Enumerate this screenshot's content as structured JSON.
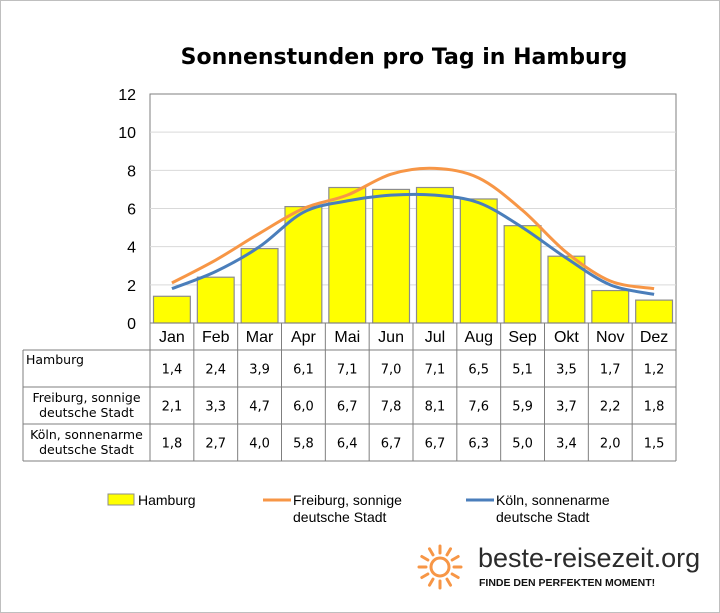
{
  "chart_data": {
    "type": "bar",
    "title": "Sonnenstunden pro Tag in Hamburg",
    "categories": [
      "Jan",
      "Feb",
      "Mar",
      "Apr",
      "Mai",
      "Jun",
      "Jul",
      "Aug",
      "Sep",
      "Okt",
      "Nov",
      "Dez"
    ],
    "ylim": [
      0,
      12
    ],
    "yticks": [
      0,
      2,
      4,
      6,
      8,
      10,
      12
    ],
    "grid": true,
    "legend_position": "bottom",
    "series": [
      {
        "name": "Hamburg",
        "type": "bar",
        "color": "#ffff00",
        "values": [
          1.4,
          2.4,
          3.9,
          6.1,
          7.1,
          7.0,
          7.1,
          6.5,
          5.1,
          3.5,
          1.7,
          1.2
        ],
        "labels": [
          "1,4",
          "2,4",
          "3,9",
          "6,1",
          "7,1",
          "7,0",
          "7,1",
          "6,5",
          "5,1",
          "3,5",
          "1,7",
          "1,2"
        ]
      },
      {
        "name": "Freiburg, sonnige deutsche Stadt",
        "type": "line",
        "color": "#f79646",
        "values": [
          2.1,
          3.3,
          4.7,
          6.0,
          6.7,
          7.8,
          8.1,
          7.6,
          5.9,
          3.7,
          2.2,
          1.8
        ],
        "labels": [
          "2,1",
          "3,3",
          "4,7",
          "6,0",
          "6,7",
          "7,8",
          "8,1",
          "7,6",
          "5,9",
          "3,7",
          "2,2",
          "1,8"
        ]
      },
      {
        "name": "Köln, sonnenarme deutsche Stadt",
        "type": "line",
        "color": "#4a7ebb",
        "values": [
          1.8,
          2.7,
          4.0,
          5.8,
          6.4,
          6.7,
          6.7,
          6.3,
          5.0,
          3.4,
          2.0,
          1.5
        ],
        "labels": [
          "1,8",
          "2,7",
          "4,0",
          "5,8",
          "6,4",
          "6,7",
          "6,7",
          "6,3",
          "5,0",
          "3,4",
          "2,0",
          "1,5"
        ]
      }
    ],
    "table_rows": [
      {
        "label_lines": [
          "Hamburg"
        ],
        "series_index": 0
      },
      {
        "label_lines": [
          "Freiburg, sonnige",
          "deutsche Stadt"
        ],
        "series_index": 1
      },
      {
        "label_lines": [
          "Köln, sonnenarme",
          "deutsche Stadt"
        ],
        "series_index": 2
      }
    ],
    "legend_entries": [
      {
        "lines": [
          "Hamburg"
        ],
        "kind": "bar",
        "color": "#ffff00"
      },
      {
        "lines": [
          "Freiburg, sonnige",
          "deutsche Stadt"
        ],
        "kind": "line",
        "color": "#f79646"
      },
      {
        "lines": [
          "Köln, sonnenarme",
          "deutsche Stadt"
        ],
        "kind": "line",
        "color": "#4a7ebb"
      }
    ]
  },
  "brand": {
    "name": "beste-reisezeit.org",
    "slogan": "FINDE DEN PERFEKTEN MOMENT!",
    "icon": "sun-icon",
    "icon_color": "#f79646"
  }
}
